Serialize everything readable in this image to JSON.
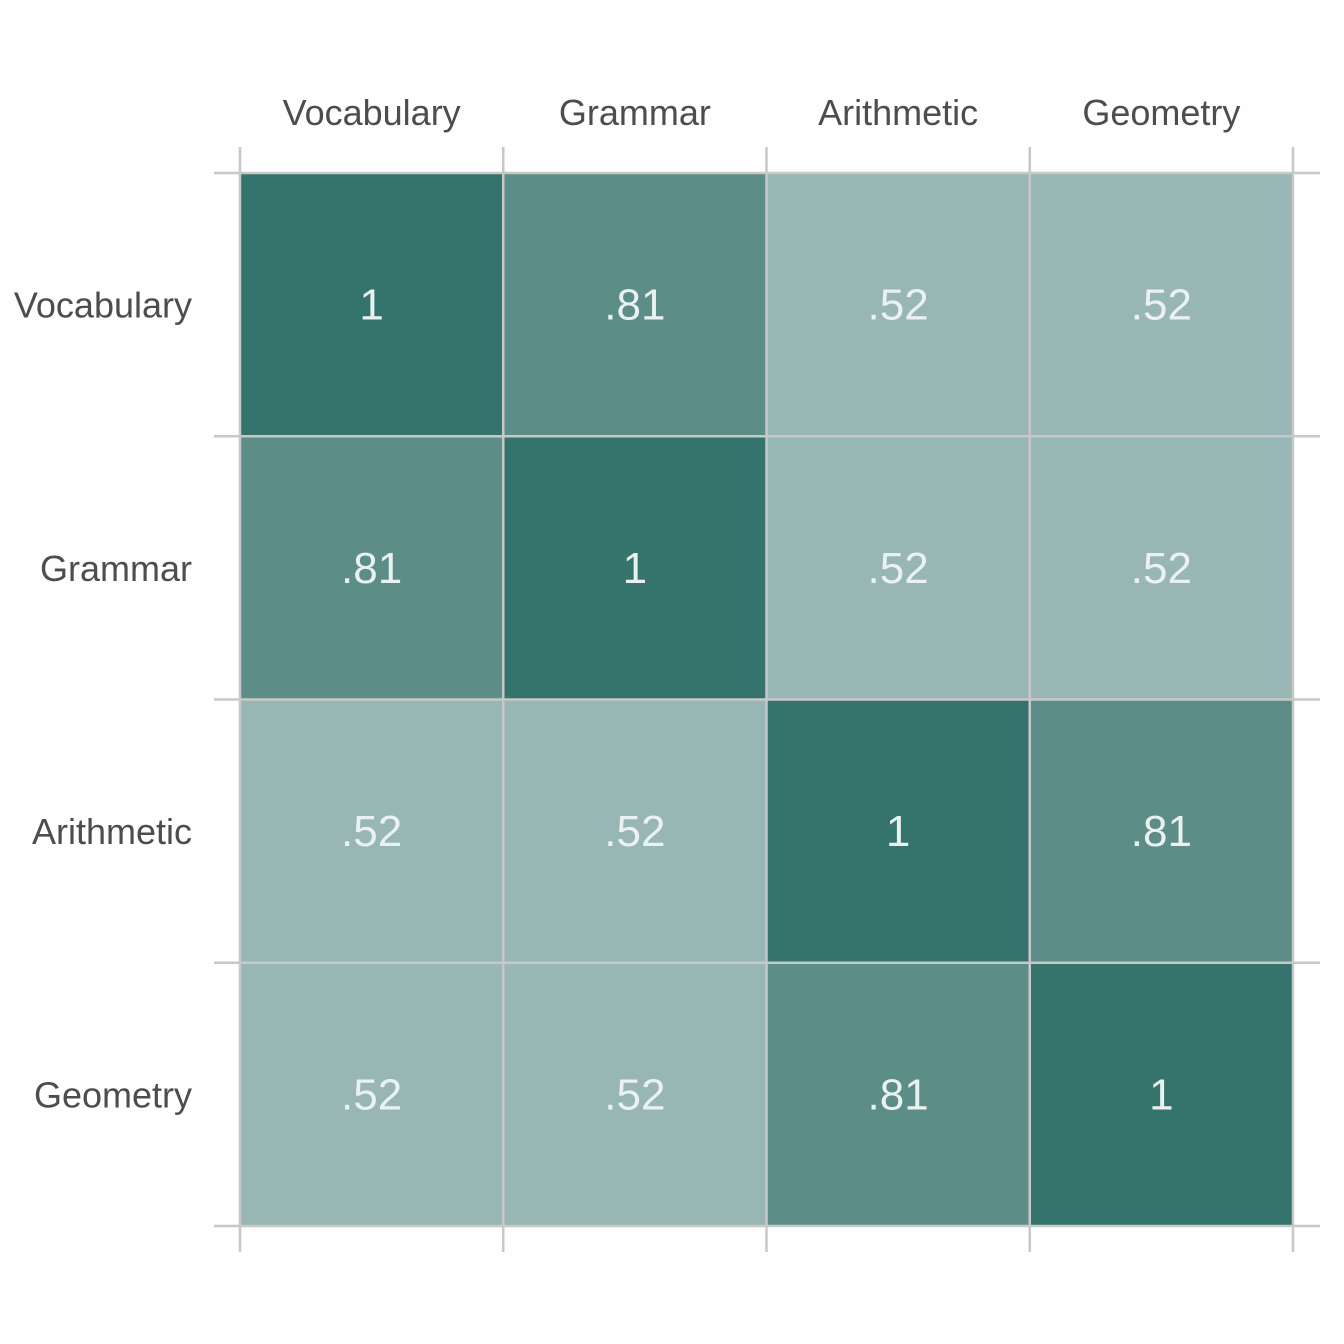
{
  "chart_data": {
    "type": "heatmap",
    "title": "",
    "xlabel": "",
    "ylabel": "",
    "x_categories": [
      "Vocabulary",
      "Grammar",
      "Arithmetic",
      "Geometry"
    ],
    "y_categories": [
      "Vocabulary",
      "Grammar",
      "Arithmetic",
      "Geometry"
    ],
    "values": [
      [
        1,
        0.81,
        0.52,
        0.52
      ],
      [
        0.81,
        1,
        0.52,
        0.52
      ],
      [
        0.52,
        0.52,
        1,
        0.81
      ],
      [
        0.52,
        0.52,
        0.81,
        1
      ]
    ],
    "value_labels": [
      [
        "1",
        ".81",
        ".52",
        ".52"
      ],
      [
        ".81",
        "1",
        ".52",
        ".52"
      ],
      [
        ".52",
        ".52",
        "1",
        ".81"
      ],
      [
        ".52",
        ".52",
        ".81",
        "1"
      ]
    ],
    "x_axis_position": "top",
    "grid": true,
    "legend": "none",
    "colors": {
      "1": "#35736d",
      "0.81": "#5c8e87",
      "0.52": "#98b6b3"
    },
    "grid_color": "#c8c8c8",
    "label_color": "#4d4d4d",
    "value_text_color": "#eaf2f1"
  }
}
